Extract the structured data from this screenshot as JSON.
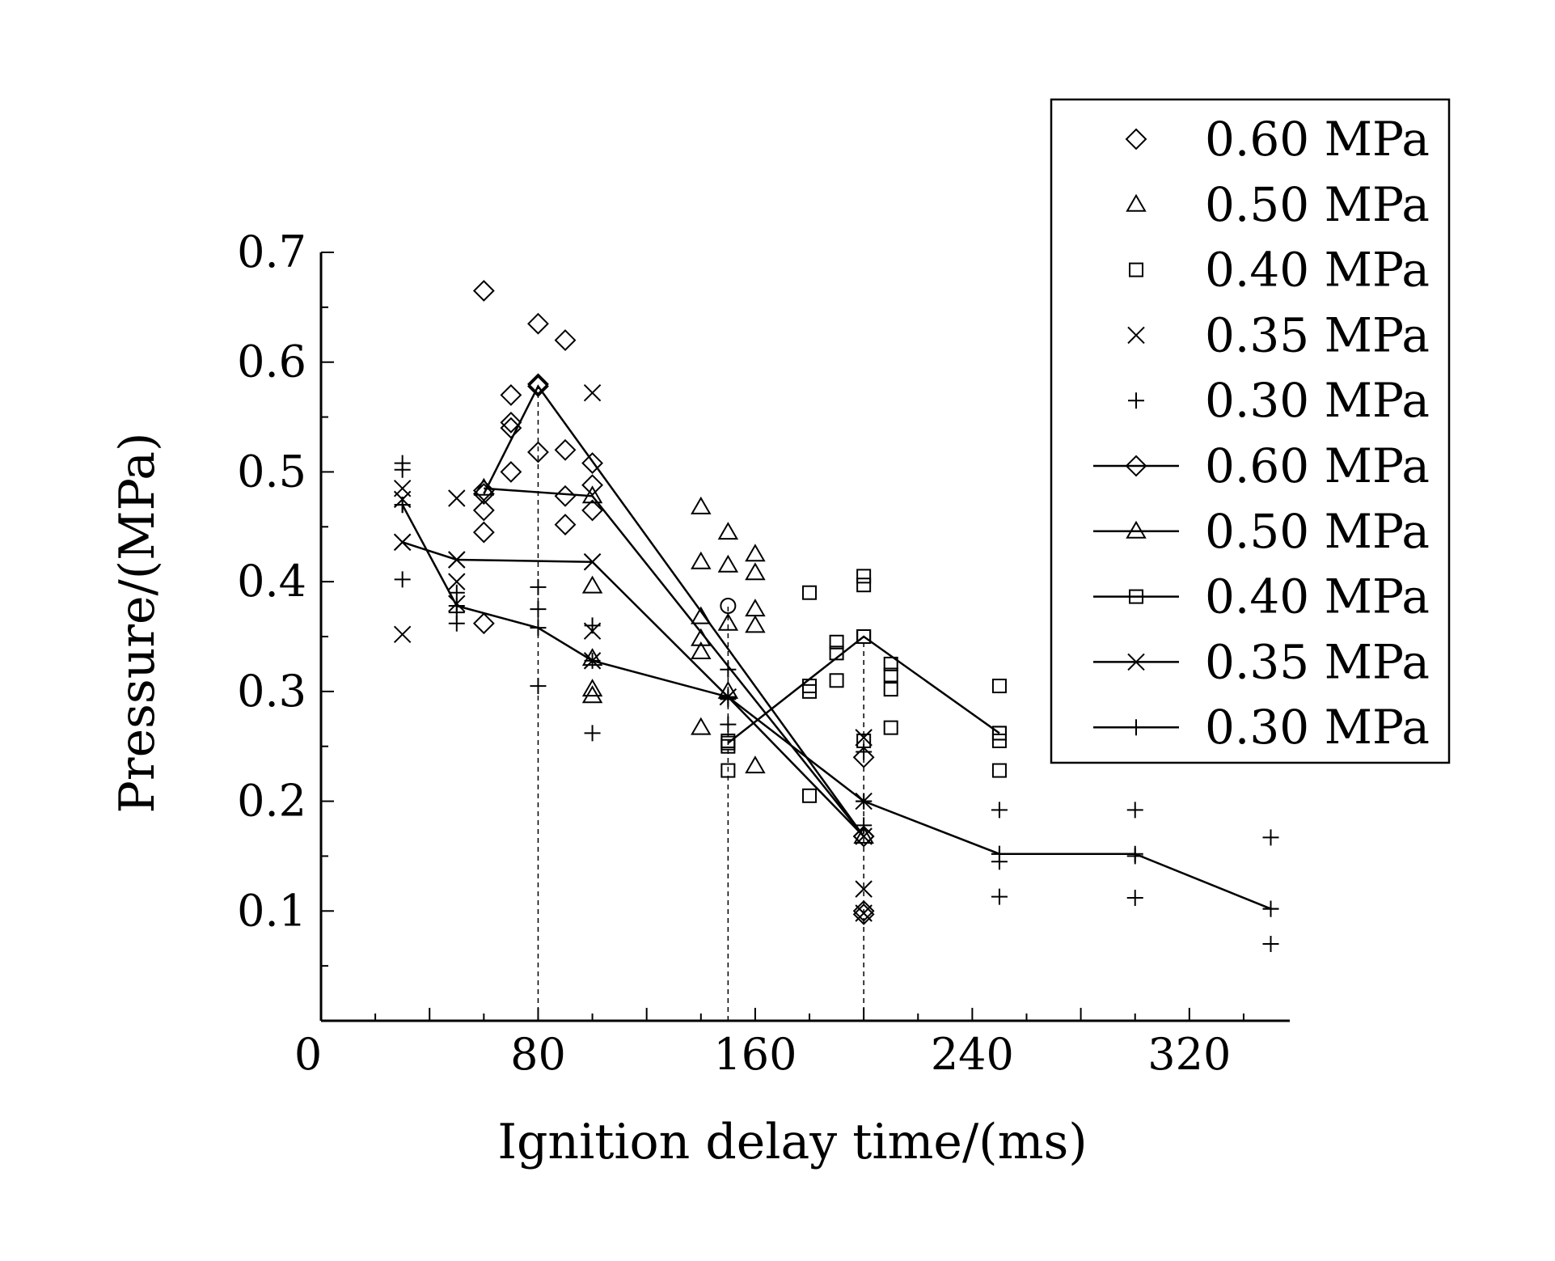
{
  "chart_data": {
    "type": "scatter",
    "title": "",
    "xlabel": "Ignition delay time/(ms)",
    "ylabel": "Pressure/(MPa)",
    "xlim": [
      0,
      357
    ],
    "ylim": [
      0,
      0.7
    ],
    "x_ticks": [
      0,
      80,
      160,
      240,
      320
    ],
    "x_tick_labels": [
      "0",
      "80",
      "160",
      "240",
      "320"
    ],
    "y_ticks": [
      0.1,
      0.2,
      0.3,
      0.4,
      0.5,
      0.6,
      0.7
    ],
    "y_tick_labels": [
      "0.1",
      "0.2",
      "0.3",
      "0.4",
      "0.5",
      "0.6",
      "0.7"
    ],
    "reference_lines_x": [
      80,
      150,
      200
    ],
    "legend_position": "top-right",
    "scatter_series": [
      {
        "name": "0.60 MPa",
        "marker": "diamond",
        "points": [
          [
            60,
            0.665
          ],
          [
            60,
            0.483
          ],
          [
            60,
            0.465
          ],
          [
            60,
            0.445
          ],
          [
            60,
            0.362
          ],
          [
            70,
            0.57
          ],
          [
            70,
            0.545
          ],
          [
            70,
            0.54
          ],
          [
            70,
            0.5
          ],
          [
            80,
            0.635
          ],
          [
            80,
            0.58
          ],
          [
            80,
            0.518
          ],
          [
            90,
            0.62
          ],
          [
            90,
            0.52
          ],
          [
            90,
            0.478
          ],
          [
            90,
            0.452
          ],
          [
            100,
            0.508
          ],
          [
            100,
            0.488
          ],
          [
            100,
            0.465
          ],
          [
            200,
            0.24
          ],
          [
            200,
            0.168
          ],
          [
            200,
            0.1
          ],
          [
            200,
            0.097
          ]
        ]
      },
      {
        "name": "0.50 MPa",
        "marker": "triangle",
        "points": [
          [
            100,
            0.396
          ],
          [
            100,
            0.302
          ],
          [
            100,
            0.296
          ],
          [
            140,
            0.468
          ],
          [
            140,
            0.418
          ],
          [
            140,
            0.368
          ],
          [
            140,
            0.348
          ],
          [
            140,
            0.336
          ],
          [
            140,
            0.267
          ],
          [
            150,
            0.445
          ],
          [
            150,
            0.415
          ],
          [
            150,
            0.362
          ],
          [
            150,
            0.3
          ],
          [
            160,
            0.425
          ],
          [
            160,
            0.408
          ],
          [
            160,
            0.375
          ],
          [
            160,
            0.36
          ],
          [
            160,
            0.232
          ]
        ]
      },
      {
        "name": "0.40 MPa",
        "marker": "square",
        "points": [
          [
            150,
            0.255
          ],
          [
            150,
            0.25
          ],
          [
            150,
            0.228
          ],
          [
            180,
            0.39
          ],
          [
            180,
            0.305
          ],
          [
            180,
            0.3
          ],
          [
            180,
            0.205
          ],
          [
            190,
            0.345
          ],
          [
            190,
            0.335
          ],
          [
            190,
            0.31
          ],
          [
            200,
            0.405
          ],
          [
            200,
            0.397
          ],
          [
            200,
            0.35
          ],
          [
            200,
            0.255
          ],
          [
            210,
            0.325
          ],
          [
            210,
            0.315
          ],
          [
            210,
            0.302
          ],
          [
            210,
            0.267
          ],
          [
            250,
            0.305
          ],
          [
            250,
            0.262
          ],
          [
            250,
            0.255
          ],
          [
            250,
            0.228
          ]
        ]
      },
      {
        "name": "0.35 MPa",
        "marker": "x",
        "points": [
          [
            30,
            0.485
          ],
          [
            30,
            0.475
          ],
          [
            30,
            0.436
          ],
          [
            30,
            0.352
          ],
          [
            50,
            0.476
          ],
          [
            50,
            0.42
          ],
          [
            50,
            0.4
          ],
          [
            50,
            0.38
          ],
          [
            100,
            0.572
          ],
          [
            100,
            0.418
          ],
          [
            100,
            0.355
          ],
          [
            100,
            0.328
          ],
          [
            200,
            0.258
          ],
          [
            200,
            0.2
          ],
          [
            200,
            0.12
          ],
          [
            200,
            0.098
          ]
        ]
      },
      {
        "name": "0.30 MPa",
        "marker": "plus",
        "points": [
          [
            30,
            0.508
          ],
          [
            30,
            0.502
          ],
          [
            30,
            0.47
          ],
          [
            30,
            0.402
          ],
          [
            50,
            0.39
          ],
          [
            50,
            0.372
          ],
          [
            50,
            0.362
          ],
          [
            80,
            0.395
          ],
          [
            80,
            0.375
          ],
          [
            80,
            0.305
          ],
          [
            100,
            0.36
          ],
          [
            100,
            0.262
          ],
          [
            150,
            0.32
          ],
          [
            150,
            0.27
          ],
          [
            200,
            0.245
          ],
          [
            200,
            0.2
          ],
          [
            200,
            0.178
          ],
          [
            250,
            0.192
          ],
          [
            250,
            0.152
          ],
          [
            250,
            0.145
          ],
          [
            250,
            0.113
          ],
          [
            300,
            0.192
          ],
          [
            300,
            0.15
          ],
          [
            300,
            0.112
          ],
          [
            350,
            0.167
          ],
          [
            350,
            0.102
          ],
          [
            350,
            0.07
          ]
        ]
      }
    ],
    "line_series": [
      {
        "name": "0.60 MPa",
        "marker": "diamond",
        "x": [
          60,
          80,
          200
        ],
        "y": [
          0.48,
          0.578,
          0.168
        ]
      },
      {
        "name": "0.50 MPa",
        "marker": "triangle",
        "x": [
          60,
          100,
          200
        ],
        "y": [
          0.485,
          0.478,
          0.168
        ]
      },
      {
        "name": "0.40 MPa",
        "marker": "square",
        "x": [
          150,
          200,
          250
        ],
        "y": [
          0.253,
          0.35,
          0.262
        ]
      },
      {
        "name": "0.35 MPa",
        "marker": "x",
        "x": [
          30,
          50,
          100,
          150,
          200
        ],
        "y": [
          0.436,
          0.42,
          0.418,
          0.295,
          0.168
        ]
      },
      {
        "name": "0.30 MPa",
        "marker": "plus",
        "x": [
          30,
          50,
          80,
          100,
          150,
          200,
          250,
          300,
          350
        ],
        "y": [
          0.47,
          0.378,
          0.358,
          0.328,
          0.295,
          0.2,
          0.152,
          0.152,
          0.102
        ]
      }
    ],
    "extra_markers": [
      {
        "series": "0.50 MPa",
        "marker": "triangle",
        "x": 100,
        "y": 0.33
      },
      {
        "series": "0.40 MPa",
        "marker": "circle",
        "x": 150,
        "y": 0.378
      },
      {
        "series": "0.30 MPa",
        "marker": "plus",
        "x": 150,
        "y": 0.293
      }
    ]
  }
}
